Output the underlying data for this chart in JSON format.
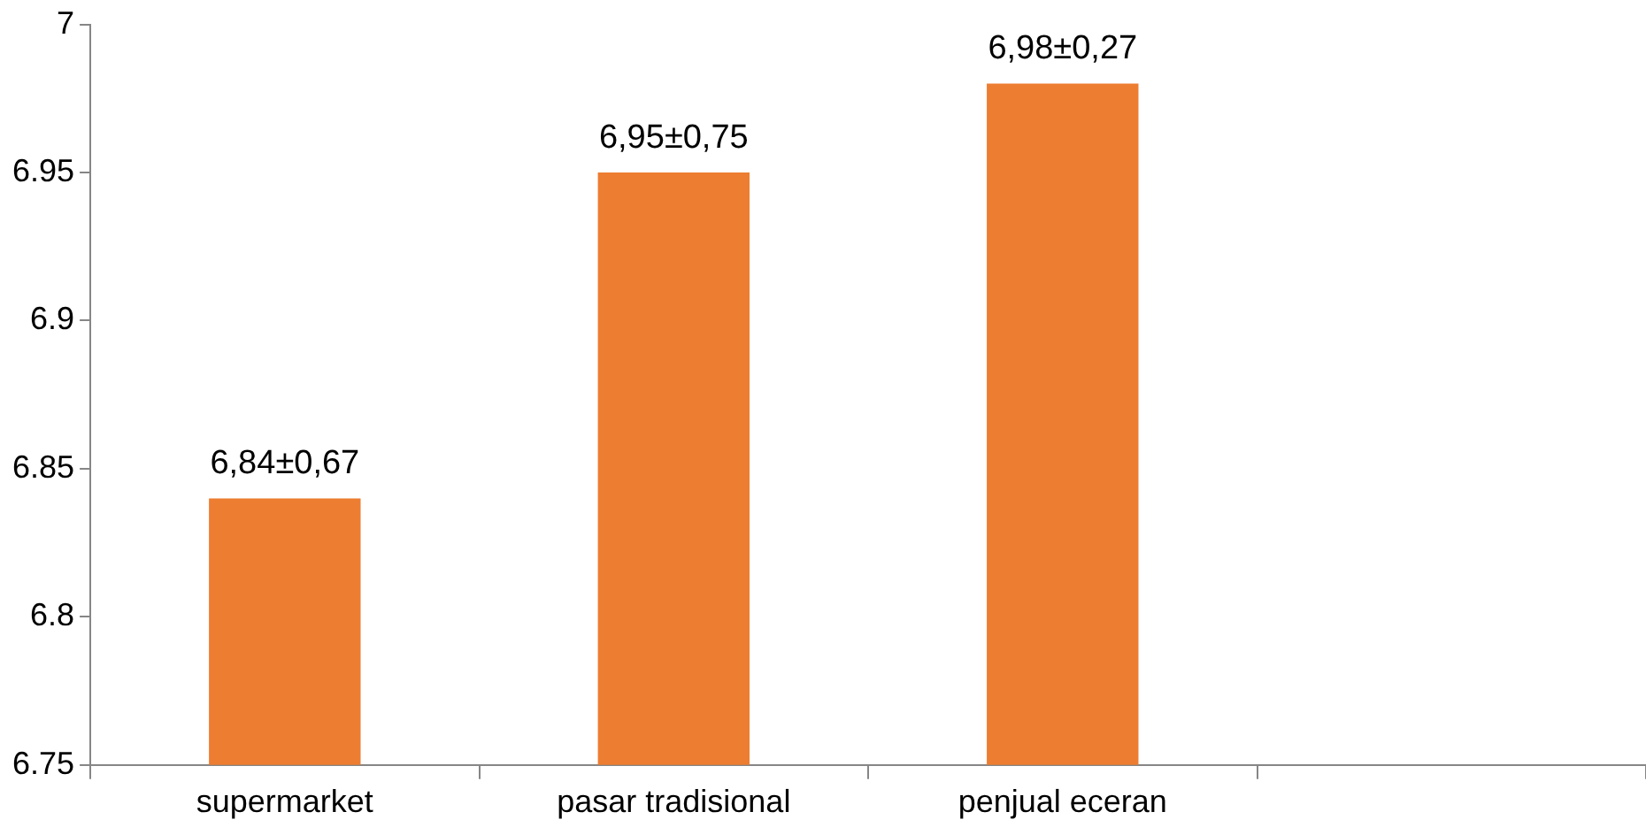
{
  "chart_data": {
    "type": "bar",
    "categories": [
      "supermarket",
      "pasar tradisional",
      "penjual eceran",
      null
    ],
    "values": [
      6.84,
      6.95,
      6.98,
      null
    ],
    "value_labels": [
      "6,84±0,67",
      "6,95±0,75",
      "6,98±0,27",
      null
    ],
    "color": "#ed7d31",
    "ylim": [
      6.75,
      7
    ],
    "yticks": [
      6.75,
      6.8,
      6.85,
      6.9,
      6.95,
      7
    ],
    "grid": false,
    "legend": false
  }
}
